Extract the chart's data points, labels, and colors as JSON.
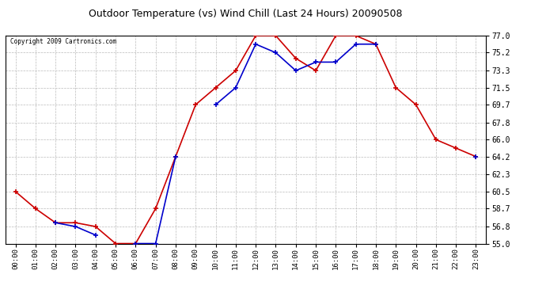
{
  "title": "Outdoor Temperature (vs) Wind Chill (Last 24 Hours) 20090508",
  "copyright": "Copyright 2009 Cartronics.com",
  "x_labels": [
    "00:00",
    "01:00",
    "02:00",
    "03:00",
    "04:00",
    "05:00",
    "06:00",
    "07:00",
    "08:00",
    "09:00",
    "10:00",
    "11:00",
    "12:00",
    "13:00",
    "14:00",
    "15:00",
    "16:00",
    "17:00",
    "18:00",
    "19:00",
    "20:00",
    "21:00",
    "22:00",
    "23:00"
  ],
  "temp_red": [
    60.5,
    58.7,
    57.2,
    57.2,
    56.8,
    55.0,
    55.0,
    58.7,
    64.2,
    69.7,
    71.5,
    73.3,
    77.0,
    77.0,
    74.6,
    73.3,
    77.0,
    77.0,
    76.1,
    71.5,
    69.7,
    66.0,
    65.1,
    64.2
  ],
  "wind_blue": [
    null,
    null,
    57.2,
    56.8,
    55.9,
    null,
    55.0,
    55.0,
    64.2,
    null,
    69.7,
    71.5,
    76.1,
    75.2,
    73.3,
    74.2,
    74.2,
    76.1,
    76.1,
    null,
    null,
    null,
    null,
    64.2
  ],
  "y_ticks": [
    55.0,
    56.8,
    58.7,
    60.5,
    62.3,
    64.2,
    66.0,
    67.8,
    69.7,
    71.5,
    73.3,
    75.2,
    77.0
  ],
  "ylim": [
    55.0,
    77.0
  ],
  "background_color": "#ffffff",
  "grid_color": "#bbbbbb",
  "red_color": "#cc0000",
  "blue_color": "#0000cc"
}
